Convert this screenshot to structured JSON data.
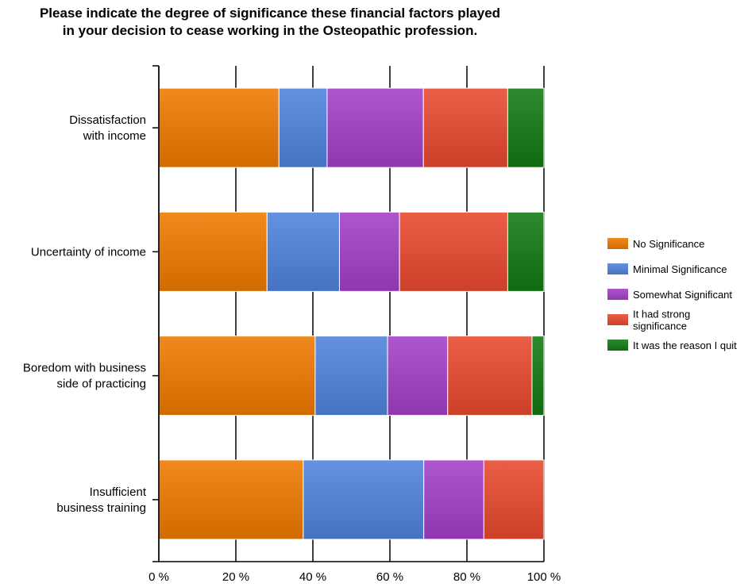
{
  "chart_data": {
    "type": "bar",
    "orientation": "horizontal",
    "stacked": true,
    "title_lines": [
      "Please indicate the degree of significance these financial factors played",
      "in your decision to cease working in the Osteopathic profession."
    ],
    "categories": [
      [
        "Dissatisfaction",
        "with income"
      ],
      [
        "Uncertainty of income"
      ],
      [
        "Boredom with business",
        "side of practicing"
      ],
      [
        "Insufficient",
        "business training"
      ]
    ],
    "series": [
      {
        "name": "No Significance",
        "label_lines": [
          "No Significance"
        ],
        "color": "#ee7a00",
        "values": [
          31.2,
          28.1,
          40.6,
          37.5
        ]
      },
      {
        "name": "Minimal Significance",
        "label_lines": [
          "Minimal Significance"
        ],
        "color": "#4f82dc",
        "values": [
          12.5,
          18.8,
          18.8,
          31.3
        ]
      },
      {
        "name": "Somewhat Significant",
        "label_lines": [
          "Somewhat Significant"
        ],
        "color": "#a23fc8",
        "values": [
          25.0,
          15.6,
          15.6,
          15.6
        ]
      },
      {
        "name": "It had strong significance",
        "label_lines": [
          "It had strong",
          "significance"
        ],
        "color": "#e8482e",
        "values": [
          21.9,
          28.1,
          21.9,
          15.6
        ]
      },
      {
        "name": "It was the reason I quit",
        "label_lines": [
          "It was the reason I quit"
        ],
        "color": "#127a12",
        "values": [
          9.4,
          9.4,
          3.1,
          0
        ]
      }
    ],
    "xlim": [
      0,
      100
    ],
    "xticks": [
      0,
      20,
      40,
      60,
      80,
      100
    ],
    "xtick_labels": [
      "0 %",
      "20 %",
      "40 %",
      "60 %",
      "80 %",
      "100 %"
    ],
    "grid": true,
    "legend_position": "right"
  }
}
